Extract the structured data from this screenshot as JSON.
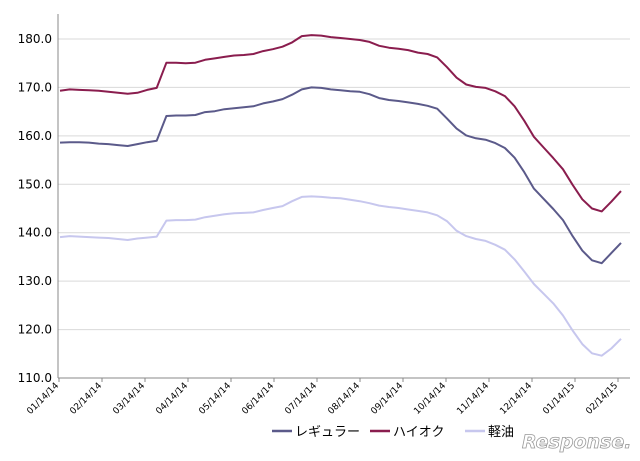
{
  "chart_data": {
    "type": "line",
    "title": "",
    "xlabel": "",
    "ylabel": "",
    "ylim": [
      110,
      185
    ],
    "yticks": [
      "110.0",
      "120.0",
      "130.0",
      "140.0",
      "150.0",
      "160.0",
      "170.0",
      "180.0"
    ],
    "xticks": [
      "01/14/14",
      "02/14/14",
      "03/14/14",
      "04/14/14",
      "05/14/14",
      "06/14/14",
      "07/14/14",
      "08/14/14",
      "09/14/14",
      "10/14/14",
      "11/14/14",
      "12/14/14",
      "01/14/15",
      "02/14/15"
    ],
    "grid": "horizontal",
    "legend": "bottom-right",
    "series": [
      {
        "name": "レギュラー",
        "color": "#5b5a8a",
        "values": [
          158.6,
          158.7,
          158.7,
          158.6,
          158.4,
          158.3,
          158.1,
          157.9,
          158.3,
          158.7,
          159.0,
          164.1,
          164.2,
          164.2,
          164.3,
          164.9,
          165.1,
          165.5,
          165.7,
          165.9,
          166.1,
          166.7,
          167.1,
          167.6,
          168.5,
          169.6,
          170.0,
          169.9,
          169.6,
          169.4,
          169.2,
          169.1,
          168.6,
          167.8,
          167.4,
          167.2,
          166.9,
          166.6,
          166.2,
          165.6,
          163.6,
          161.5,
          160.1,
          159.5,
          159.2,
          158.5,
          157.5,
          155.5,
          152.5,
          149.1,
          147.0,
          144.9,
          142.6,
          139.3,
          136.3,
          134.3,
          133.7,
          135.8,
          137.9
        ]
      },
      {
        "name": "ハイオク",
        "color": "#8a1d4e",
        "values": [
          169.3,
          169.6,
          169.5,
          169.4,
          169.3,
          169.1,
          168.9,
          168.7,
          168.9,
          169.5,
          169.9,
          175.1,
          175.1,
          175.0,
          175.1,
          175.7,
          176.0,
          176.3,
          176.6,
          176.7,
          176.9,
          177.5,
          177.9,
          178.4,
          179.3,
          180.6,
          180.8,
          180.7,
          180.4,
          180.2,
          180.0,
          179.8,
          179.4,
          178.6,
          178.2,
          178.0,
          177.7,
          177.2,
          176.9,
          176.2,
          174.2,
          172.0,
          170.6,
          170.1,
          169.9,
          169.2,
          168.2,
          166.1,
          163.1,
          159.8,
          157.6,
          155.4,
          153.1,
          149.9,
          146.9,
          145.0,
          144.4,
          146.4,
          148.6
        ]
      },
      {
        "name": "軽油",
        "color": "#c7c7ee",
        "values": [
          139.1,
          139.3,
          139.2,
          139.1,
          139.0,
          138.9,
          138.7,
          138.5,
          138.8,
          139.0,
          139.2,
          142.5,
          142.6,
          142.6,
          142.7,
          143.2,
          143.5,
          143.8,
          144.0,
          144.1,
          144.2,
          144.7,
          145.1,
          145.5,
          146.5,
          147.4,
          147.5,
          147.4,
          147.2,
          147.1,
          146.8,
          146.5,
          146.1,
          145.6,
          145.3,
          145.1,
          144.8,
          144.5,
          144.2,
          143.6,
          142.4,
          140.4,
          139.3,
          138.7,
          138.3,
          137.5,
          136.5,
          134.5,
          132.0,
          129.4,
          127.4,
          125.4,
          122.9,
          119.8,
          117.0,
          115.1,
          114.6,
          116.1,
          118.1
        ]
      }
    ]
  },
  "watermark": {
    "text": "Response."
  }
}
